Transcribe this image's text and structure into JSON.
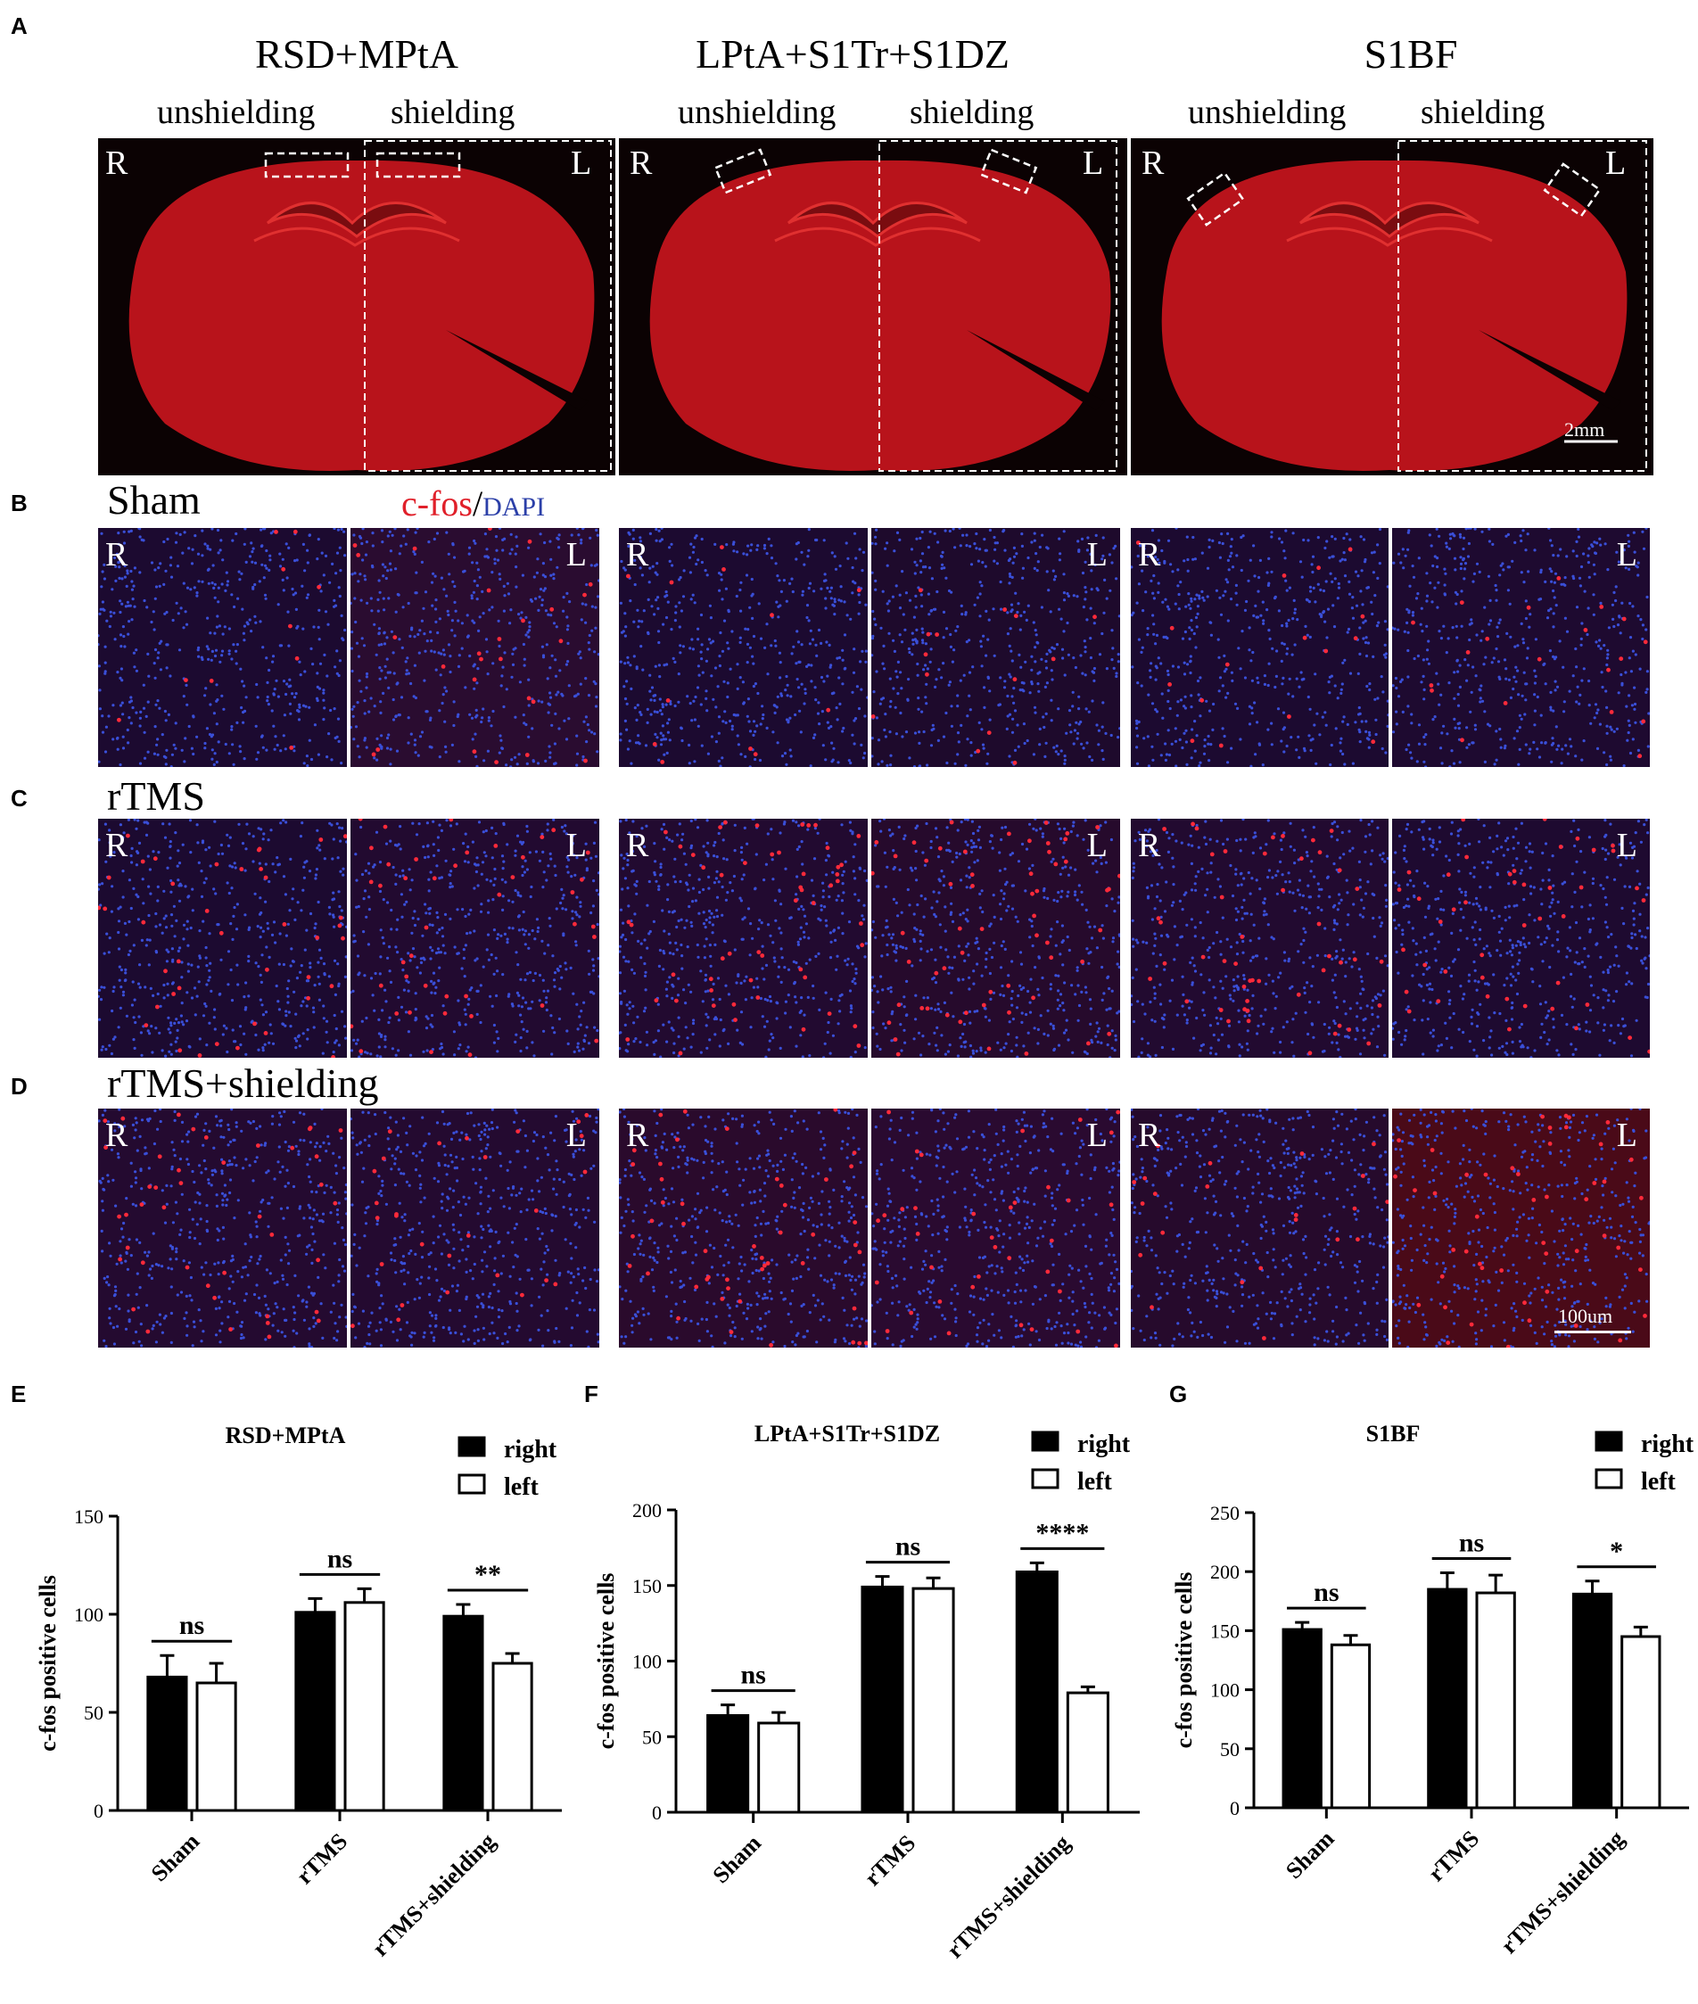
{
  "panels": {
    "A": "A",
    "B": "B",
    "C": "C",
    "D": "D",
    "E": "E",
    "F": "F",
    "G": "G"
  },
  "panel_a": {
    "regions": [
      "RSD+MPtA",
      "LPtA+S1Tr+S1DZ",
      "S1BF"
    ],
    "unshielding": "unshielding",
    "shielding": "shielding",
    "right_label": "R",
    "left_label": "L",
    "scale_bar": "2mm"
  },
  "rows": {
    "sham": "Sham",
    "rtms": "rTMS",
    "rtms_shielding": "rTMS+shielding"
  },
  "stain": {
    "cfos": "c-fos",
    "sep": "/",
    "dapi": "DAPI"
  },
  "micro_scale": "100um",
  "colors": {
    "tissue_red": "#c0141a",
    "dapi_blue": "#3a4fd8",
    "cfos_red": "#ff2a3a",
    "bar_black": "#000000"
  },
  "chart_data": [
    {
      "type": "bar",
      "title": "RSD+MPtA",
      "ylabel": "c-fos positive cells",
      "categories": [
        "Sham",
        "rTMS",
        "rTMS+shielding"
      ],
      "ylim": [
        0,
        150
      ],
      "yticks": [
        0,
        50,
        100,
        150
      ],
      "series": [
        {
          "name": "right",
          "values": [
            68,
            101,
            99
          ],
          "errors": [
            11,
            7,
            6
          ],
          "color": "#000000"
        },
        {
          "name": "left",
          "values": [
            65,
            106,
            75
          ],
          "errors": [
            10,
            7,
            5
          ],
          "color": "#ffffff"
        }
      ],
      "significance": [
        "ns",
        "ns",
        "**"
      ],
      "legend_placement": "top-right"
    },
    {
      "type": "bar",
      "title": "LPtA+S1Tr+S1DZ",
      "ylabel": "c-fos positive cells",
      "categories": [
        "Sham",
        "rTMS",
        "rTMS+shielding"
      ],
      "ylim": [
        0,
        200
      ],
      "yticks": [
        0,
        50,
        100,
        150,
        200
      ],
      "series": [
        {
          "name": "right",
          "values": [
            64,
            149,
            159
          ],
          "errors": [
            7,
            7,
            6
          ],
          "color": "#000000"
        },
        {
          "name": "left",
          "values": [
            59,
            148,
            79
          ],
          "errors": [
            7,
            7,
            4
          ],
          "color": "#ffffff"
        }
      ],
      "significance": [
        "ns",
        "ns",
        "****"
      ],
      "legend_placement": "top-right"
    },
    {
      "type": "bar",
      "title": "S1BF",
      "ylabel": "c-fos positive cells",
      "categories": [
        "Sham",
        "rTMS",
        "rTMS+shielding"
      ],
      "ylim": [
        0,
        250
      ],
      "yticks": [
        0,
        50,
        100,
        150,
        200,
        250
      ],
      "series": [
        {
          "name": "right",
          "values": [
            151,
            185,
            181
          ],
          "errors": [
            6,
            14,
            11
          ],
          "color": "#000000"
        },
        {
          "name": "left",
          "values": [
            138,
            182,
            145
          ],
          "errors": [
            8,
            15,
            8
          ],
          "color": "#ffffff"
        }
      ],
      "significance": [
        "ns",
        "ns",
        "*"
      ],
      "legend_placement": "top-right"
    }
  ]
}
